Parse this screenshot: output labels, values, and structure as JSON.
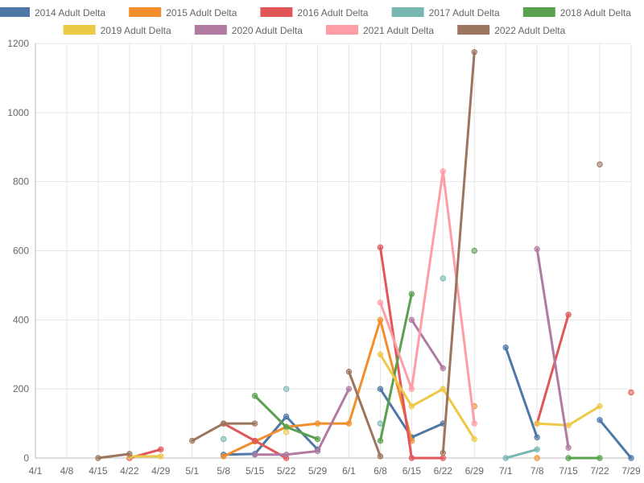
{
  "chart_data": {
    "type": "line",
    "categories": [
      "4/1",
      "4/8",
      "4/15",
      "4/22",
      "4/29",
      "5/1",
      "5/8",
      "5/15",
      "5/22",
      "5/29",
      "6/1",
      "6/8",
      "6/15",
      "6/22",
      "6/29",
      "7/1",
      "7/8",
      "7/15",
      "7/22",
      "7/29"
    ],
    "ylim": [
      0,
      1200
    ],
    "yticks": [
      0,
      200,
      400,
      600,
      800,
      1000,
      1200
    ],
    "grid": true,
    "legend_position": "top",
    "series": [
      {
        "name": "2014 Adult Delta",
        "color": "#4e79a7",
        "values": [
          null,
          null,
          null,
          null,
          null,
          null,
          10,
          12,
          120,
          25,
          null,
          200,
          60,
          100,
          null,
          320,
          60,
          null,
          110,
          0
        ]
      },
      {
        "name": "2015 Adult Delta",
        "color": "#f28e2b",
        "values": [
          null,
          null,
          null,
          null,
          null,
          null,
          5,
          48,
          90,
          100,
          100,
          400,
          50,
          null,
          150,
          null,
          0,
          null,
          null,
          null
        ]
      },
      {
        "name": "2016 Adult Delta",
        "color": "#e15759",
        "values": [
          null,
          null,
          null,
          0,
          25,
          null,
          100,
          50,
          0,
          null,
          null,
          610,
          0,
          0,
          null,
          null,
          100,
          415,
          null,
          190
        ]
      },
      {
        "name": "2017 Adult Delta",
        "color": "#76b7b2",
        "values": [
          null,
          null,
          null,
          null,
          null,
          null,
          55,
          null,
          200,
          null,
          null,
          100,
          null,
          520,
          null,
          0,
          25,
          null,
          null,
          null
        ]
      },
      {
        "name": "2018 Adult Delta",
        "color": "#59a14f",
        "values": [
          null,
          null,
          null,
          null,
          null,
          null,
          null,
          180,
          90,
          55,
          null,
          50,
          475,
          null,
          600,
          null,
          null,
          0,
          0,
          null
        ]
      },
      {
        "name": "2019 Adult Delta",
        "color": "#edc948",
        "values": [
          null,
          null,
          null,
          5,
          5,
          null,
          null,
          null,
          75,
          null,
          null,
          300,
          150,
          200,
          55,
          null,
          100,
          95,
          150,
          null
        ]
      },
      {
        "name": "2020 Adult Delta",
        "color": "#b07aa1",
        "values": [
          null,
          null,
          null,
          null,
          null,
          null,
          null,
          10,
          10,
          20,
          200,
          null,
          400,
          260,
          null,
          null,
          605,
          30,
          null,
          null
        ]
      },
      {
        "name": "2021 Adult Delta",
        "color": "#ff9da7",
        "values": [
          null,
          null,
          null,
          null,
          null,
          null,
          null,
          null,
          null,
          null,
          null,
          450,
          200,
          830,
          100,
          null,
          null,
          null,
          null,
          null
        ]
      },
      {
        "name": "2022 Adult Delta",
        "color": "#9c755f",
        "values": [
          null,
          null,
          0,
          12,
          null,
          50,
          100,
          100,
          null,
          null,
          250,
          5,
          null,
          15,
          1175,
          null,
          null,
          null,
          850,
          null
        ]
      }
    ]
  }
}
